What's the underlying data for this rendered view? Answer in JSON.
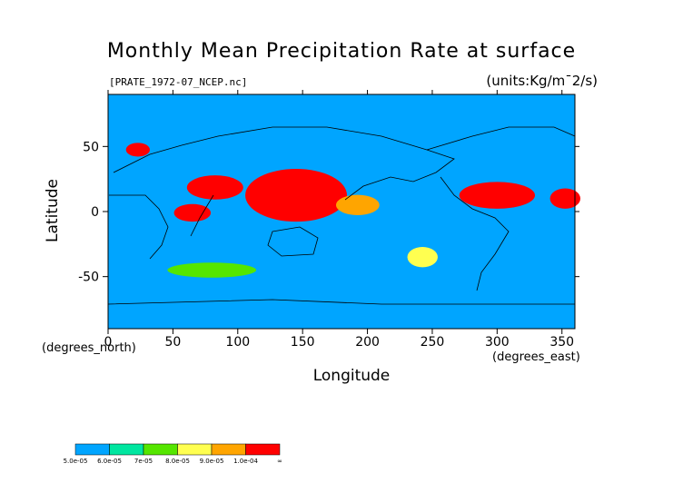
{
  "chart_data": {
    "type": "heatmap",
    "title": "Monthly Mean Precipitation Rate at surface",
    "file_label": "[PRATE_1972-07_NCEP.nc]",
    "units_label": "(units:Kg/m¯2/s)",
    "xlabel": "Longitude",
    "ylabel": "Latitude",
    "x_unit_label": "(degrees_east)",
    "y_unit_label": "(degrees_north)",
    "xlim": [
      0,
      360
    ],
    "ylim": [
      -90,
      90
    ],
    "x_ticks": [
      0,
      50,
      100,
      150,
      200,
      250,
      300,
      350
    ],
    "y_ticks": [
      -50,
      0,
      50
    ],
    "background_color": "#00a5ff",
    "colorbar": {
      "levels": [
        "5.0e-05",
        "6.0e-05",
        "7e-05",
        "8.0e-05",
        "9.0e-05",
        "1.0e-04",
        "∞"
      ],
      "colors": [
        "#00a5ff",
        "#00e6a0",
        "#55e600",
        "#ffff50",
        "#ffa500",
        "#ff0000"
      ]
    },
    "regions": [
      {
        "level": 5,
        "lon": [
          110,
          180
        ],
        "lat": [
          -5,
          30
        ]
      },
      {
        "level": 5,
        "lon": [
          65,
          100
        ],
        "lat": [
          12,
          25
        ]
      },
      {
        "level": 5,
        "lon": [
          55,
          75
        ],
        "lat": [
          -5,
          3
        ]
      },
      {
        "level": 5,
        "lon": [
          275,
          325
        ],
        "lat": [
          5,
          20
        ]
      },
      {
        "level": 5,
        "lon": [
          345,
          360
        ],
        "lat": [
          5,
          15
        ]
      },
      {
        "level": 5,
        "lon": [
          18,
          28
        ],
        "lat": [
          45,
          50
        ]
      },
      {
        "level": 4,
        "lon": [
          180,
          205
        ],
        "lat": [
          0,
          10
        ]
      },
      {
        "level": 3,
        "lon": [
          235,
          250
        ],
        "lat": [
          -40,
          -30
        ]
      },
      {
        "level": 2,
        "lon": [
          50,
          110
        ],
        "lat": [
          -48,
          -42
        ]
      }
    ]
  }
}
